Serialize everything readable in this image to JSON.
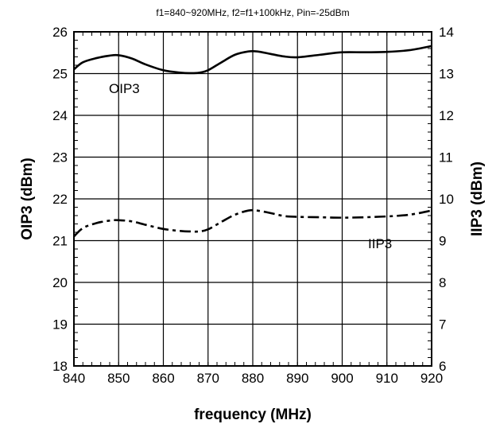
{
  "chart_data": {
    "type": "line",
    "title": "f1=840~920MHz, f2=f1+100kHz, Pin=-25dBm",
    "xlabel": "frequency (MHz)",
    "ylabel_left": "OIP3 (dBm)",
    "ylabel_right": "IIP3 (dBm)",
    "xlim": [
      840,
      920
    ],
    "ylim_left": [
      18,
      26
    ],
    "ylim_right": [
      6,
      14
    ],
    "x_ticks": [
      840,
      850,
      860,
      870,
      880,
      890,
      900,
      910,
      920
    ],
    "y_ticks_left": [
      18,
      19,
      20,
      21,
      22,
      23,
      24,
      25,
      26
    ],
    "y_ticks_right": [
      6,
      7,
      8,
      9,
      10,
      11,
      12,
      13,
      14
    ],
    "grid": true,
    "series": [
      {
        "name": "OIP3",
        "axis": "left",
        "style": "solid",
        "x": [
          840,
          842,
          845,
          848,
          850,
          853,
          856,
          860,
          864,
          866,
          868,
          870,
          873,
          876,
          879,
          881,
          884,
          887,
          890,
          895,
          900,
          905,
          910,
          915,
          920
        ],
        "y": [
          25.1,
          25.27,
          25.37,
          25.43,
          25.44,
          25.36,
          25.22,
          25.08,
          25.02,
          25.01,
          25.02,
          25.08,
          25.27,
          25.45,
          25.53,
          25.53,
          25.47,
          25.41,
          25.39,
          25.45,
          25.51,
          25.51,
          25.52,
          25.56,
          25.66
        ]
      },
      {
        "name": "IIP3",
        "axis": "right",
        "style": "dashdot",
        "x": [
          840,
          842,
          845,
          848,
          850,
          853,
          856,
          860,
          864,
          866,
          868,
          870,
          873,
          876,
          879,
          881,
          884,
          887,
          890,
          895,
          900,
          905,
          910,
          915,
          920
        ],
        "y": [
          9.1,
          9.3,
          9.42,
          9.48,
          9.49,
          9.46,
          9.38,
          9.28,
          9.23,
          9.22,
          9.22,
          9.27,
          9.45,
          9.62,
          9.72,
          9.72,
          9.66,
          9.59,
          9.57,
          9.56,
          9.55,
          9.56,
          9.58,
          9.62,
          9.72
        ]
      }
    ],
    "annotations": [
      {
        "text": "OIP3",
        "series": "OIP3"
      },
      {
        "text": "IIP3",
        "series": "IIP3"
      }
    ]
  }
}
